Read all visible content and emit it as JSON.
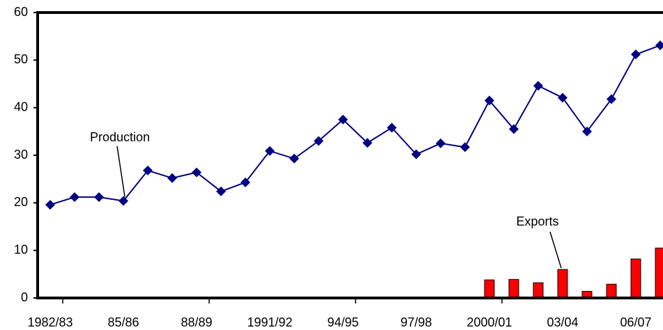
{
  "chart_data": {
    "type": "line-bar",
    "categories": [
      "1982/83",
      null,
      null,
      "85/86",
      null,
      null,
      "88/89",
      null,
      null,
      "1991/92",
      null,
      null,
      "94/95",
      null,
      null,
      "97/98",
      null,
      null,
      "2000/01",
      null,
      null,
      "03/04",
      null,
      null,
      "06/07",
      null
    ],
    "series": [
      {
        "name": "Production",
        "type": "line",
        "color": "#000080",
        "values": [
          19.6,
          21.2,
          21.2,
          20.4,
          26.8,
          25.2,
          26.4,
          22.4,
          24.3,
          30.9,
          29.3,
          33.0,
          37.5,
          32.6,
          35.8,
          30.2,
          32.5,
          31.7,
          41.5,
          35.5,
          44.6,
          42.1,
          35.0,
          41.8,
          51.2,
          53.1
        ]
      },
      {
        "name": "Exports",
        "type": "bar",
        "color": "#ff0000",
        "values": [
          0.2,
          0,
          0,
          0,
          0,
          0,
          0,
          0,
          0,
          0,
          0,
          0,
          0,
          0,
          0.2,
          0,
          0,
          0,
          3.8,
          3.9,
          3.2,
          6.0,
          1.4,
          2.9,
          8.2,
          10.5
        ]
      }
    ],
    "ylim": [
      0,
      60
    ],
    "yticks": [
      0,
      10,
      20,
      30,
      40,
      50,
      60
    ],
    "grid": false
  }
}
